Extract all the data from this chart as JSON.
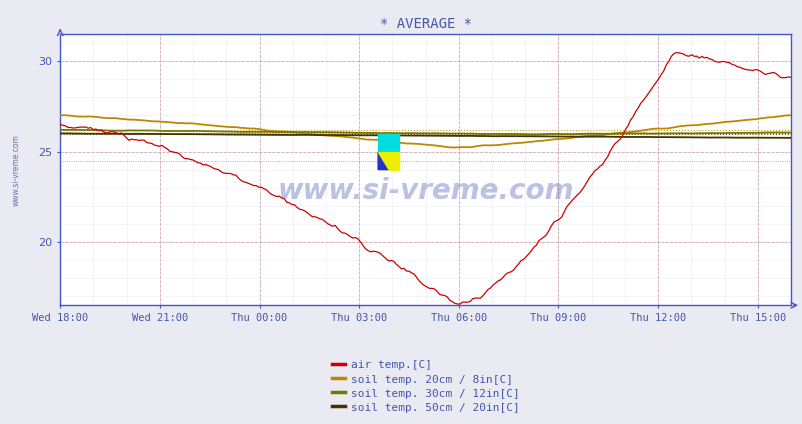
{
  "title": "* AVERAGE *",
  "title_color": "#4455aa",
  "bg_color": "#eaeaf2",
  "plot_bg_color": "#ffffff",
  "x_ticks_labels": [
    "Wed 18:00",
    "Wed 21:00",
    "Thu 00:00",
    "Thu 03:00",
    "Thu 06:00",
    "Thu 09:00",
    "Thu 12:00",
    "Thu 15:00"
  ],
  "x_ticks_positions": [
    0,
    3,
    6,
    9,
    12,
    15,
    18,
    21
  ],
  "ylim_min": 16.5,
  "ylim_max": 31.5,
  "yticks": [
    20,
    25,
    30
  ],
  "axis_color": "#4455cc",
  "tick_color": "#4455aa",
  "grid_h_color": "#cc9999",
  "grid_v_color": "#ccccdd",
  "minor_grid_color": "#ddddee",
  "legend_labels": [
    "air temp.[C]",
    "soil temp. 20cm / 8in[C]",
    "soil temp. 30cm / 12in[C]",
    "soil temp. 50cm / 20in[C]"
  ],
  "legend_colors": [
    "#cc0000",
    "#bb8800",
    "#777700",
    "#443300"
  ],
  "air_temp_color": "#cc0000",
  "soil_20_color": "#bb8800",
  "soil_30_color": "#777700",
  "soil_50_color": "#443300",
  "hline_20_color": "#cc9900",
  "hline_30_color": "#888800",
  "hline_50_color": "#554400",
  "hline_air_color": "#dd4444",
  "n_points": 288,
  "total_hours": 22
}
